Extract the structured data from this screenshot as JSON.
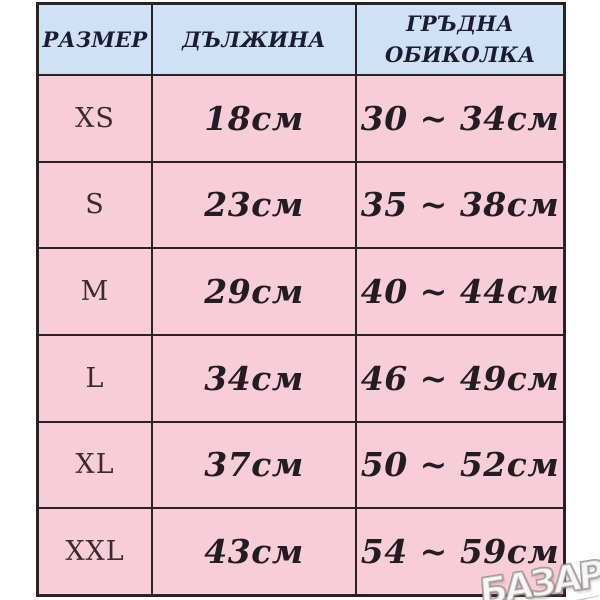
{
  "colors": {
    "border": "#2b2226",
    "header_bg": "#cfe1f4",
    "row_bg": "#f9cdd7"
  },
  "chart_data": {
    "type": "table",
    "title": "",
    "columns": [
      "РАЗМЕР",
      "ДЪЛЖИНА",
      "ГРЪДНА ОБИКОЛКА"
    ],
    "rows": [
      [
        "XS",
        "18см",
        "30 ~ 34см"
      ],
      [
        "S",
        "23см",
        "35 ~ 38см"
      ],
      [
        "M",
        "29см",
        "40 ~ 44см"
      ],
      [
        "L",
        "34см",
        "46 ~ 49см"
      ],
      [
        "XL",
        "37см",
        "50 ~ 52см"
      ],
      [
        "XXL",
        "43см",
        "54 ~ 59см"
      ]
    ]
  },
  "table": {
    "columns": [
      "РАЗМЕР",
      "ДЪЛЖИНА",
      "ГРЪДНА ОБИКОЛКА"
    ],
    "rows": [
      {
        "size": "XS",
        "length": "18см",
        "chest": "30 ~ 34см"
      },
      {
        "size": "S",
        "length": "23см",
        "chest": "35 ~ 38см"
      },
      {
        "size": "M",
        "length": "29см",
        "chest": "40 ~ 44см"
      },
      {
        "size": "L",
        "length": "34см",
        "chest": "46 ~ 49см"
      },
      {
        "size": "XL",
        "length": "37см",
        "chest": "50 ~ 52см"
      },
      {
        "size": "XXL",
        "length": "43см",
        "chest": "54 ~ 59см"
      }
    ]
  },
  "watermark": {
    "text": "БАЗАР"
  }
}
